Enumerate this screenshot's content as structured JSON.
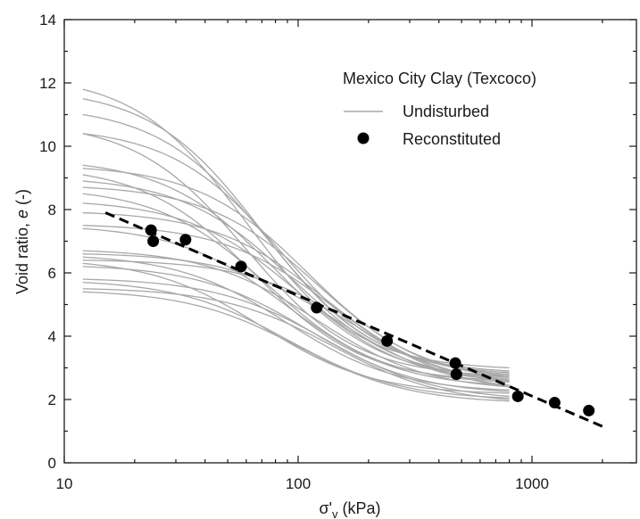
{
  "chart_data": {
    "type": "scatter",
    "title": "",
    "xlabel": "σ'v (kPa)",
    "xlabel_main": "σ'",
    "xlabel_sub": "v",
    "xlabel_tail": " (kPa)",
    "ylabel": "Void ratio, e (-)",
    "ylabel_pre": "Void ratio, ",
    "ylabel_var": "e",
    "ylabel_post": " (-)",
    "x_scale": "log",
    "xlim": [
      10,
      3000
    ],
    "ylim": [
      0,
      14
    ],
    "x_ticks": [
      10,
      100,
      1000
    ],
    "x_tick_labels": [
      "10",
      "100",
      "1000"
    ],
    "y_ticks": [
      0,
      2,
      4,
      6,
      8,
      10,
      12,
      14
    ],
    "y_tick_labels": [
      "0",
      "2",
      "4",
      "6",
      "8",
      "10",
      "12",
      "14"
    ],
    "grid": false,
    "legend": {
      "title": "Mexico City Clay (Texcoco)",
      "position": "top-right",
      "entries": [
        {
          "label": "Undisturbed",
          "marker": "line",
          "color": "#a8a8a8"
        },
        {
          "label": "Reconstituted",
          "marker": "circle",
          "color": "#000000"
        }
      ]
    },
    "undisturbed_curve_color": "#a8a8a8",
    "undisturbed_curves": [
      {
        "e0": 11.8,
        "sy": 60,
        "eend": 3.0
      },
      {
        "e0": 11.5,
        "sy": 70,
        "eend": 2.9
      },
      {
        "e0": 11.0,
        "sy": 75,
        "eend": 2.85
      },
      {
        "e0": 10.4,
        "sy": 85,
        "eend": 2.8
      },
      {
        "e0": 10.4,
        "sy": 60,
        "eend": 2.75
      },
      {
        "e0": 9.4,
        "sy": 80,
        "eend": 2.7
      },
      {
        "e0": 9.3,
        "sy": 110,
        "eend": 2.75
      },
      {
        "e0": 9.1,
        "sy": 65,
        "eend": 2.6
      },
      {
        "e0": 8.9,
        "sy": 95,
        "eend": 2.65
      },
      {
        "e0": 8.7,
        "sy": 120,
        "eend": 2.7
      },
      {
        "e0": 8.5,
        "sy": 75,
        "eend": 2.55
      },
      {
        "e0": 8.2,
        "sy": 100,
        "eend": 2.6
      },
      {
        "e0": 7.9,
        "sy": 130,
        "eend": 2.6
      },
      {
        "e0": 7.5,
        "sy": 140,
        "eend": 2.55
      },
      {
        "e0": 7.4,
        "sy": 90,
        "eend": 2.45
      },
      {
        "e0": 6.7,
        "sy": 120,
        "eend": 2.4
      },
      {
        "e0": 6.6,
        "sy": 150,
        "eend": 2.45
      },
      {
        "e0": 6.5,
        "sy": 90,
        "eend": 2.3
      },
      {
        "e0": 6.4,
        "sy": 180,
        "eend": 2.4
      },
      {
        "e0": 6.3,
        "sy": 70,
        "eend": 2.2
      },
      {
        "e0": 6.2,
        "sy": 110,
        "eend": 2.25
      },
      {
        "e0": 5.8,
        "sy": 130,
        "eend": 2.1
      },
      {
        "e0": 5.7,
        "sy": 90,
        "eend": 2.05
      },
      {
        "e0": 5.5,
        "sy": 140,
        "eend": 2.0
      },
      {
        "e0": 5.4,
        "sy": 100,
        "eend": 1.95
      }
    ],
    "undisturbed_x_range": [
      12,
      800
    ],
    "reconstituted_points": [
      {
        "x": 23.5,
        "y": 7.35
      },
      {
        "x": 24,
        "y": 7.0
      },
      {
        "x": 33,
        "y": 7.05
      },
      {
        "x": 57,
        "y": 6.2
      },
      {
        "x": 120,
        "y": 4.9
      },
      {
        "x": 240,
        "y": 3.85
      },
      {
        "x": 470,
        "y": 3.15
      },
      {
        "x": 475,
        "y": 2.8
      },
      {
        "x": 870,
        "y": 2.1
      },
      {
        "x": 1250,
        "y": 1.9
      },
      {
        "x": 1750,
        "y": 1.65
      }
    ],
    "trend_line": {
      "x": [
        15,
        2000
      ],
      "y": [
        7.9,
        1.15
      ],
      "style": "dashed",
      "color": "#000000"
    }
  }
}
